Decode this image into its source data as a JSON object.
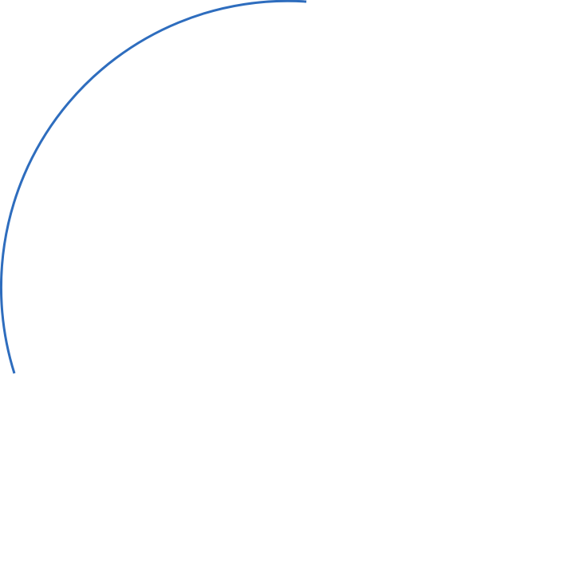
{
  "diagram": {
    "shape": "circular-arc",
    "stroke_color": "#2E6DBE",
    "background_color": "#FFFFFF"
  }
}
